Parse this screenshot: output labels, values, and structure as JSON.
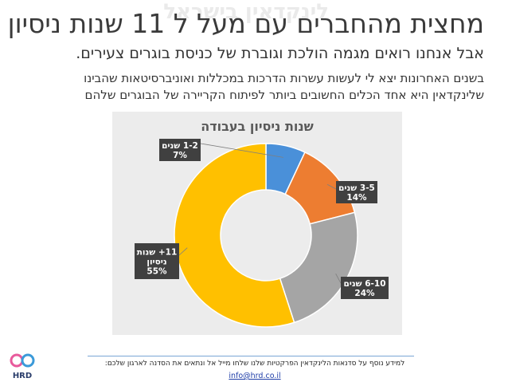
{
  "slide": {
    "ghost_text": "לינקדאין בישראל",
    "title": "מחצית מהחברים עם מעל ל 11 שנות ניסיון",
    "subtitle": "אבל אנחנו רואים מגמה הולכת וגוברת של כניסת בוגרים צעירים.",
    "body_lines": [
      "בשנים האחרונות יצא לי לעשות עשרות הדרכות במכללות ואוניברסיטאות שהבינו",
      "שלינקדאין היא אחד הכלים החשובים ביותר לפיתוח הקריירה של הבוגרים שלהם"
    ]
  },
  "footer": {
    "text": "למידע נוסף על סדנאות הלינקדאין הפרקטיות שלנו שלחו מייל אל ונתאים את הסדנה לארגון שלכם:",
    "email": "info@hrd.co.il",
    "logo_text": "HRD"
  },
  "colors": {
    "blue": "#4a90d9",
    "orange": "#ed7d31",
    "gray": "#a5a5a5",
    "yellow": "#ffc000",
    "panel": "#ececec",
    "label_box": "#404040"
  },
  "chart_data": {
    "type": "pie",
    "variant": "donut",
    "title": "שנות ניסיון בעבודה",
    "categories": [
      "1-2 שנים",
      "3-5 שנים",
      "6-10 שנים",
      "11+ שנות ניסיון"
    ],
    "values": [
      7,
      14,
      24,
      55
    ],
    "value_labels": [
      "7%",
      "14%",
      "24%",
      "55%"
    ],
    "label_lines": [
      [
        "1-2 שנים",
        "7%"
      ],
      [
        "3-5 שנים",
        "14%"
      ],
      [
        "6-10 שנים",
        "24%"
      ],
      [
        "11+ שנות",
        "ניסיון",
        "55%"
      ]
    ],
    "colors": [
      "#4a90d9",
      "#ed7d31",
      "#a5a5a5",
      "#ffc000"
    ],
    "start_angle_deg": 0,
    "direction": "clockwise",
    "legend": "none"
  }
}
